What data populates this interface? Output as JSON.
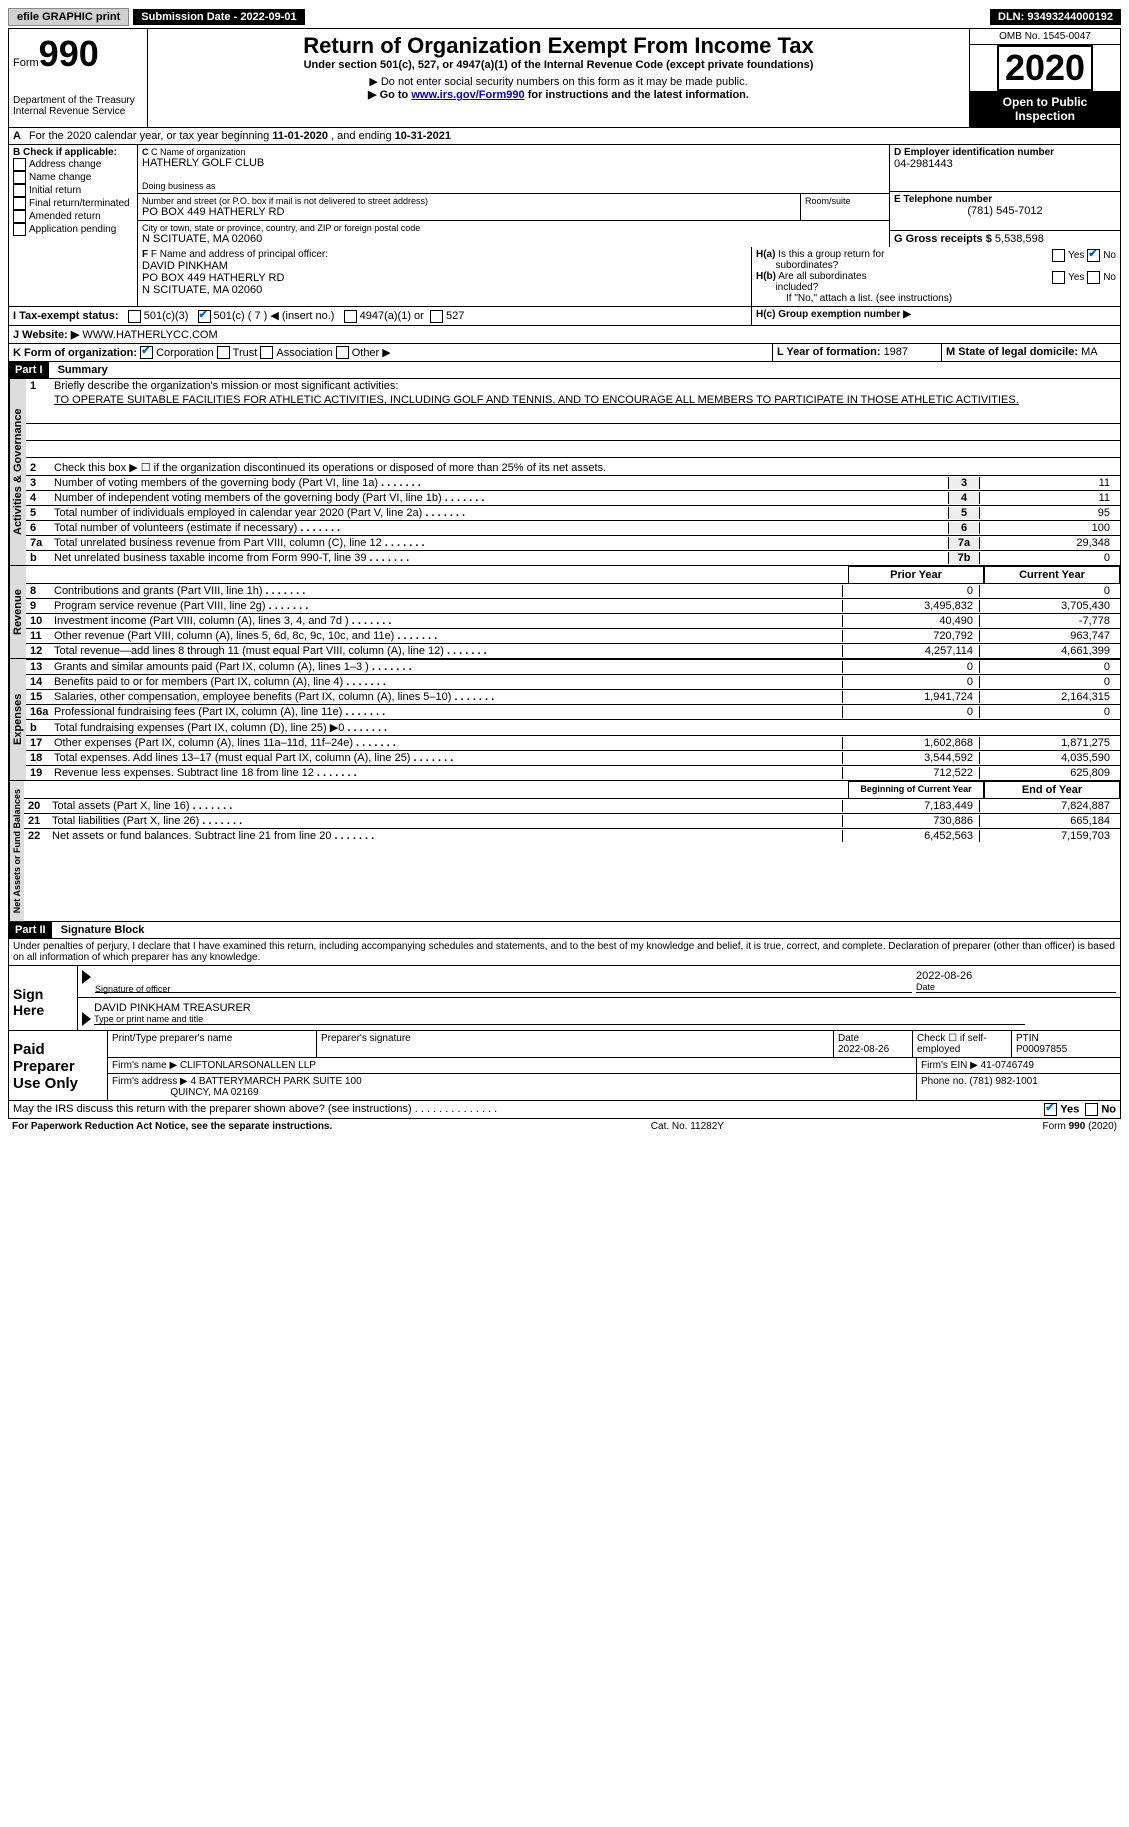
{
  "topbar": {
    "efile": "efile GRAPHIC print",
    "subdate_label": "Submission Date - ",
    "subdate": "2022-09-01",
    "dln_label": "DLN: ",
    "dln": "93493244000192"
  },
  "header": {
    "form_label": "Form",
    "form_no": "990",
    "dept": "Department of the Treasury",
    "irs": "Internal Revenue Service",
    "title": "Return of Organization Exempt From Income Tax",
    "subtitle": "Under section 501(c), 527, or 4947(a)(1) of the Internal Revenue Code (except private foundations)",
    "note1": "▶ Do not enter social security numbers on this form as it may be made public.",
    "note2_pre": "▶ Go to ",
    "note2_link": "www.irs.gov/Form990",
    "note2_post": " for instructions and the latest information.",
    "omb": "OMB No. 1545-0047",
    "year": "2020",
    "open": "Open to Public Inspection"
  },
  "lineA": {
    "text_pre": "For the 2020 calendar year, or tax year beginning ",
    "begin": "11-01-2020",
    "mid": " , and ending ",
    "end": "10-31-2021"
  },
  "boxB": {
    "title": "B Check if applicable:",
    "items": [
      "Address change",
      "Name change",
      "Initial return",
      "Final return/terminated",
      "Amended return",
      "Application pending"
    ]
  },
  "boxC": {
    "name_label": "C Name of organization",
    "name": "HATHERLY GOLF CLUB",
    "dba_label": "Doing business as",
    "addr_label": "Number and street (or P.O. box if mail is not delivered to street address)",
    "room_label": "Room/suite",
    "addr": "PO BOX 449 HATHERLY RD",
    "city_label": "City or town, state or province, country, and ZIP or foreign postal code",
    "city": "N SCITUATE, MA  02060"
  },
  "boxD": {
    "label": "D Employer identification number",
    "val": "04-2981443"
  },
  "boxE": {
    "label": "E Telephone number",
    "val": "(781) 545-7012"
  },
  "boxG": {
    "label": "G Gross receipts $ ",
    "val": "5,538,598"
  },
  "boxF": {
    "label": "F Name and address of principal officer:",
    "name": "DAVID PINKHAM",
    "addr1": "PO BOX 449 HATHERLY RD",
    "addr2": "N SCITUATE, MA  02060"
  },
  "boxH": {
    "a_label": "H(a) Is this a group return for subordinates?",
    "b_label": "H(b) Are all subordinates included?",
    "b_note": "If \"No,\" attach a list. (see instructions)",
    "c_label": "H(c) Group exemption number ▶",
    "yes": "Yes",
    "no": "No"
  },
  "lineI": {
    "label": "I    Tax-exempt status:",
    "opts": [
      "501(c)(3)",
      "501(c) ( 7 ) ◀ (insert no.)",
      "4947(a)(1) or",
      "527"
    ]
  },
  "lineJ": {
    "label": "J   Website: ▶",
    "val": "WWW.HATHERLYCC.COM"
  },
  "lineK": {
    "label": "K Form of organization:",
    "opts": [
      "Corporation",
      "Trust",
      "Association",
      "Other ▶"
    ]
  },
  "lineL": {
    "label": "L Year of formation: ",
    "val": "1987"
  },
  "lineM": {
    "label": "M State of legal domicile: ",
    "val": "MA"
  },
  "part1": {
    "header": "Part I",
    "title": "Summary",
    "q1_label": "Briefly describe the organization's mission or most significant activities:",
    "q1_text": "TO OPERATE SUITABLE FACILITIES FOR ATHLETIC ACTIVITIES, INCLUDING GOLF AND TENNIS, AND TO ENCOURAGE ALL MEMBERS TO PARTICIPATE IN THOSE ATHLETIC ACTIVITIES.",
    "q2": "Check this box ▶ ☐ if the organization discontinued its operations or disposed of more than 25% of its net assets.",
    "sections": {
      "gov_label": "Activities & Governance",
      "rev_label": "Revenue",
      "exp_label": "Expenses",
      "net_label": "Net Assets or Fund Balances"
    },
    "gov_lines": [
      {
        "n": "3",
        "label": "Number of voting members of the governing body (Part VI, line 1a)",
        "box": "3",
        "val": "11"
      },
      {
        "n": "4",
        "label": "Number of independent voting members of the governing body (Part VI, line 1b)",
        "box": "4",
        "val": "11"
      },
      {
        "n": "5",
        "label": "Total number of individuals employed in calendar year 2020 (Part V, line 2a)",
        "box": "5",
        "val": "95"
      },
      {
        "n": "6",
        "label": "Total number of volunteers (estimate if necessary)",
        "box": "6",
        "val": "100"
      },
      {
        "n": "7a",
        "label": "Total unrelated business revenue from Part VIII, column (C), line 12",
        "box": "7a",
        "val": "29,348"
      },
      {
        "n": "b",
        "label": "Net unrelated business taxable income from Form 990-T, line 39",
        "box": "7b",
        "val": "0"
      }
    ],
    "col_prior": "Prior Year",
    "col_current": "Current Year",
    "rev_lines": [
      {
        "n": "8",
        "label": "Contributions and grants (Part VIII, line 1h)",
        "prior": "0",
        "curr": "0"
      },
      {
        "n": "9",
        "label": "Program service revenue (Part VIII, line 2g)",
        "prior": "3,495,832",
        "curr": "3,705,430"
      },
      {
        "n": "10",
        "label": "Investment income (Part VIII, column (A), lines 3, 4, and 7d )",
        "prior": "40,490",
        "curr": "-7,778"
      },
      {
        "n": "11",
        "label": "Other revenue (Part VIII, column (A), lines 5, 6d, 8c, 9c, 10c, and 11e)",
        "prior": "720,792",
        "curr": "963,747"
      },
      {
        "n": "12",
        "label": "Total revenue—add lines 8 through 11 (must equal Part VIII, column (A), line 12)",
        "prior": "4,257,114",
        "curr": "4,661,399"
      }
    ],
    "exp_lines": [
      {
        "n": "13",
        "label": "Grants and similar amounts paid (Part IX, column (A), lines 1–3 )",
        "prior": "0",
        "curr": "0"
      },
      {
        "n": "14",
        "label": "Benefits paid to or for members (Part IX, column (A), line 4)",
        "prior": "0",
        "curr": "0"
      },
      {
        "n": "15",
        "label": "Salaries, other compensation, employee benefits (Part IX, column (A), lines 5–10)",
        "prior": "1,941,724",
        "curr": "2,164,315"
      },
      {
        "n": "16a",
        "label": "Professional fundraising fees (Part IX, column (A), line 11e)",
        "prior": "0",
        "curr": "0"
      },
      {
        "n": "b",
        "label": "Total fundraising expenses (Part IX, column (D), line 25) ▶0",
        "prior": "",
        "curr": "",
        "shade": true
      },
      {
        "n": "17",
        "label": "Other expenses (Part IX, column (A), lines 11a–11d, 11f–24e)",
        "prior": "1,602,868",
        "curr": "1,871,275"
      },
      {
        "n": "18",
        "label": "Total expenses. Add lines 13–17 (must equal Part IX, column (A), line 25)",
        "prior": "3,544,592",
        "curr": "4,035,590"
      },
      {
        "n": "19",
        "label": "Revenue less expenses. Subtract line 18 from line 12",
        "prior": "712,522",
        "curr": "625,809"
      }
    ],
    "col_begin": "Beginning of Current Year",
    "col_end": "End of Year",
    "net_lines": [
      {
        "n": "20",
        "label": "Total assets (Part X, line 16)",
        "prior": "7,183,449",
        "curr": "7,824,887"
      },
      {
        "n": "21",
        "label": "Total liabilities (Part X, line 26)",
        "prior": "730,886",
        "curr": "665,184"
      },
      {
        "n": "22",
        "label": "Net assets or fund balances. Subtract line 21 from line 20",
        "prior": "6,452,563",
        "curr": "7,159,703"
      }
    ]
  },
  "part2": {
    "header": "Part II",
    "title": "Signature Block",
    "decl": "Under penalties of perjury, I declare that I have examined this return, including accompanying schedules and statements, and to the best of my knowledge and belief, it is true, correct, and complete. Declaration of preparer (other than officer) is based on all information of which preparer has any knowledge.",
    "sign_here": "Sign Here",
    "sig_officer": "Signature of officer",
    "sig_date": "2022-08-26",
    "date_label": "Date",
    "officer_name": "DAVID PINKHAM TREASURER",
    "type_name": "Type or print name and title",
    "paid": "Paid Preparer Use Only",
    "prep_name_label": "Print/Type preparer's name",
    "prep_sig_label": "Preparer's signature",
    "prep_date_label": "Date",
    "prep_date": "2022-08-26",
    "self_emp": "Check ☐ if self-employed",
    "ptin_label": "PTIN",
    "ptin": "P00097855",
    "firm_name_label": "Firm's name   ▶",
    "firm_name": "CLIFTONLARSONALLEN LLP",
    "firm_ein_label": "Firm's EIN ▶",
    "firm_ein": "41-0746749",
    "firm_addr_label": "Firm's address ▶",
    "firm_addr1": "4 BATTERYMARCH PARK SUITE 100",
    "firm_addr2": "QUINCY, MA  02169",
    "phone_label": "Phone no. ",
    "phone": "(781) 982-1001",
    "discuss": "May the IRS discuss this return with the preparer shown above? (see instructions)",
    "yes": "Yes",
    "no": "No"
  },
  "footer": {
    "left": "For Paperwork Reduction Act Notice, see the separate instructions.",
    "mid": "Cat. No. 11282Y",
    "right": "Form 990 (2020)"
  }
}
